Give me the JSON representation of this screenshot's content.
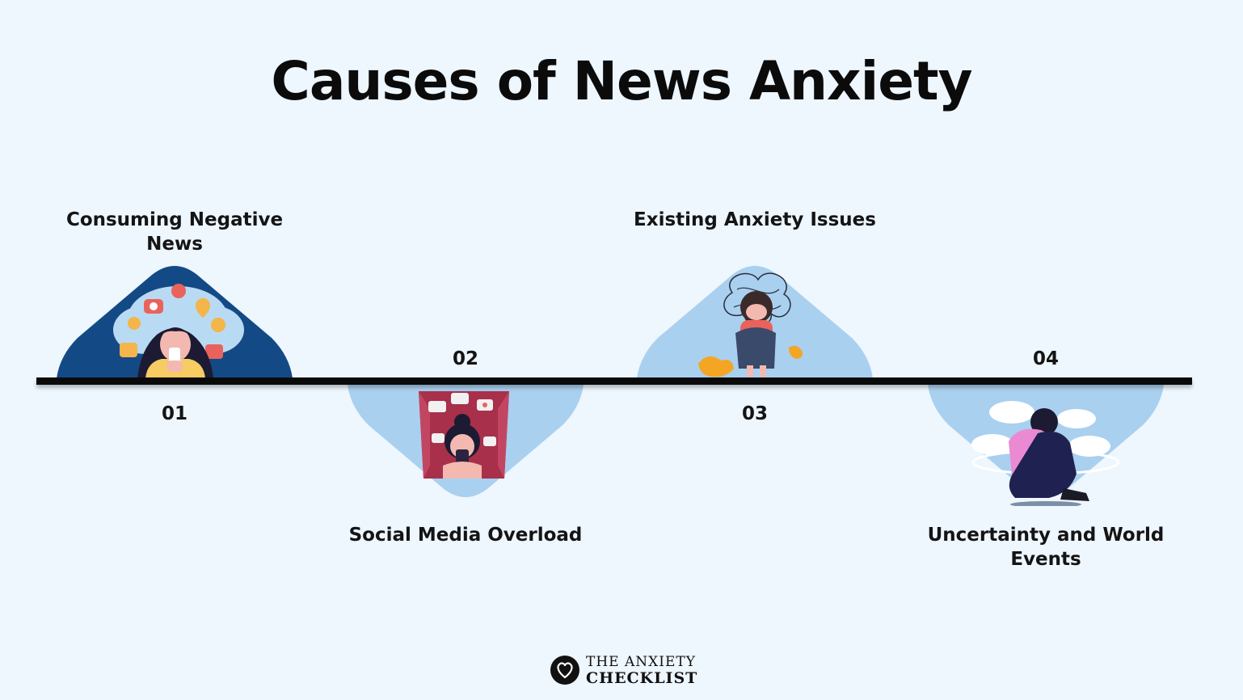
{
  "title": "Causes of News Anxiety",
  "steps": [
    {
      "number": "01",
      "label": "Consuming Negative News"
    },
    {
      "number": "02",
      "label": "Social Media Overload"
    },
    {
      "number": "03",
      "label": "Existing Anxiety Issues"
    },
    {
      "number": "04",
      "label": "Uncertainty and World Events"
    }
  ],
  "colors": {
    "background": "#eef6fe",
    "timeline": "#0a0a0a",
    "dark_triangle": "#134a85",
    "light_triangle": "#a9d0ef"
  },
  "footer": {
    "line1": "THE ANXIETY",
    "line2": "CHECKLIST",
    "icon": "heart-logo-icon"
  }
}
